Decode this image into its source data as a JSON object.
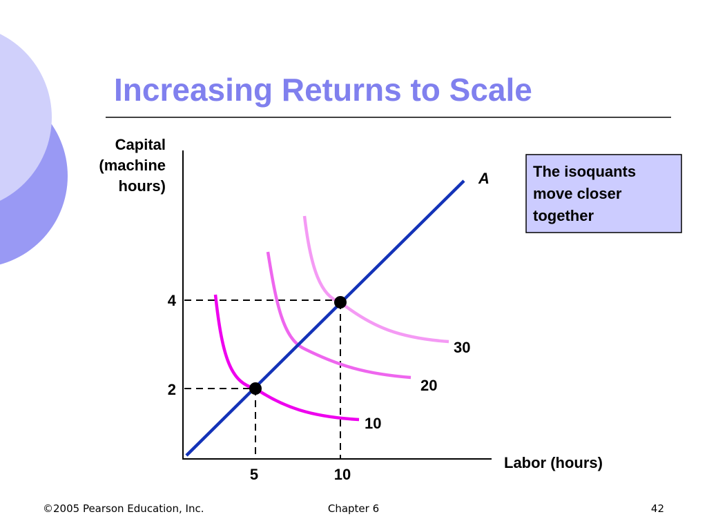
{
  "title": "Increasing Returns to Scale",
  "y_axis_label": [
    "Capital",
    "(machine",
    "hours)"
  ],
  "x_axis_label": "Labor (hours)",
  "ray_label": "A",
  "y_ticks": [
    4,
    2
  ],
  "x_ticks": [
    5,
    10
  ],
  "isoquant_labels": [
    10,
    20,
    30
  ],
  "note": [
    "The isoquants",
    "move closer",
    "together"
  ],
  "footer": {
    "left": "©2005 Pearson Education, Inc.",
    "center": "Chapter 6",
    "right": "42"
  }
}
